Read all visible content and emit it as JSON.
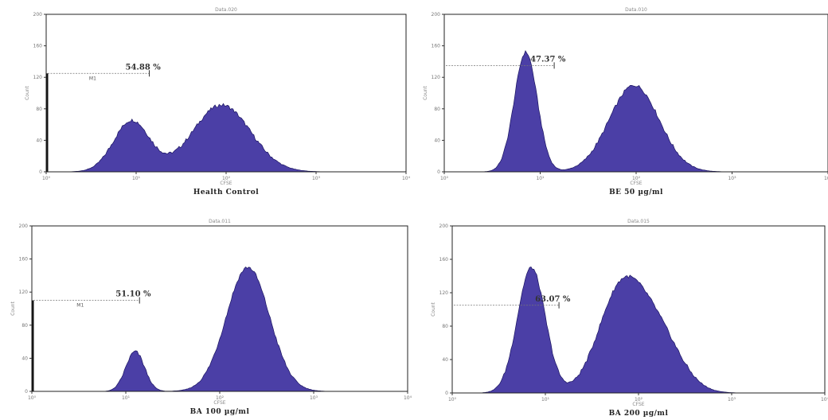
{
  "figure": {
    "background": "#ffffff",
    "fill_color": "#4b3fa6",
    "edge_color": "#1a1460"
  },
  "chart_data": [
    {
      "type": "area",
      "title": "",
      "sample_label": "Data.020",
      "xlabel": "CFSE",
      "ylabel": "Count",
      "caption": "Health Control",
      "xscale": "log",
      "xlim": [
        1,
        10000
      ],
      "x_ticks": [
        "10⁰",
        "10¹",
        "10²",
        "10³",
        "10⁴"
      ],
      "ylim": [
        0,
        200
      ],
      "y_ticks": [
        "0",
        "40",
        "80",
        "120",
        "160",
        "200"
      ],
      "gate": {
        "name": "M1",
        "percent": "54.88 %",
        "x_start": 1,
        "x_end": 14,
        "y": 125
      },
      "peaks": [
        {
          "center_log": 0.95,
          "height": 65,
          "sigma": 0.2
        },
        {
          "center_log": 1.95,
          "height": 85,
          "sigma": 0.32
        }
      ],
      "low_spike": 125
    },
    {
      "type": "area",
      "title": "",
      "sample_label": "Data.010",
      "xlabel": "CFSE",
      "ylabel": "Count",
      "caption": "BE 50 µg/ml",
      "xscale": "log",
      "xlim": [
        1,
        10000
      ],
      "x_ticks": [
        "10⁰",
        "10¹",
        "10²",
        "10³",
        "10⁴"
      ],
      "ylim": [
        0,
        200
      ],
      "y_ticks": [
        "0",
        "40",
        "80",
        "120",
        "160",
        "200"
      ],
      "gate": {
        "name": "",
        "percent": "47.37 %",
        "x_start": 1,
        "x_end": 14,
        "y": 135
      },
      "peaks": [
        {
          "center_log": 0.85,
          "height": 152,
          "sigma": 0.12
        },
        {
          "center_log": 1.98,
          "height": 110,
          "sigma": 0.26
        }
      ],
      "low_spike": 0
    },
    {
      "type": "area",
      "title": "",
      "sample_label": "Data.011",
      "xlabel": "CFSE",
      "ylabel": "Count",
      "caption": "BA 100 µg/ml",
      "xscale": "log",
      "xlim": [
        1,
        10000
      ],
      "x_ticks": [
        "10⁰",
        "10¹",
        "10²",
        "10³",
        "10⁴"
      ],
      "ylim": [
        0,
        200
      ],
      "y_ticks": [
        "0",
        "40",
        "80",
        "120",
        "160",
        "200"
      ],
      "gate": {
        "name": "M1",
        "percent": "51.10 %",
        "x_start": 1,
        "x_end": 14,
        "y": 110
      },
      "peaks": [
        {
          "center_log": 1.1,
          "height": 48,
          "sigma": 0.1
        },
        {
          "center_log": 2.3,
          "height": 150,
          "sigma": 0.23
        }
      ],
      "low_spike": 110
    },
    {
      "type": "area",
      "title": "",
      "sample_label": "Data.015",
      "xlabel": "CFSE",
      "ylabel": "Count",
      "caption": "BA 200 µg/ml",
      "xscale": "log",
      "xlim": [
        1,
        10000
      ],
      "x_ticks": [
        "10⁰",
        "10¹",
        "10²",
        "10³",
        "10⁴"
      ],
      "ylim": [
        0,
        200
      ],
      "y_ticks": [
        "0",
        "40",
        "80",
        "120",
        "160",
        "200"
      ],
      "gate": {
        "name": "",
        "percent": "63.07 %",
        "x_start": 1,
        "x_end": 14,
        "y": 105
      },
      "peaks": [
        {
          "center_log": 0.85,
          "height": 150,
          "sigma": 0.15
        },
        {
          "center_log": 1.8,
          "height": 115,
          "sigma": 0.24
        },
        {
          "center_log": 2.2,
          "height": 70,
          "sigma": 0.25
        }
      ],
      "low_spike": 0
    }
  ]
}
